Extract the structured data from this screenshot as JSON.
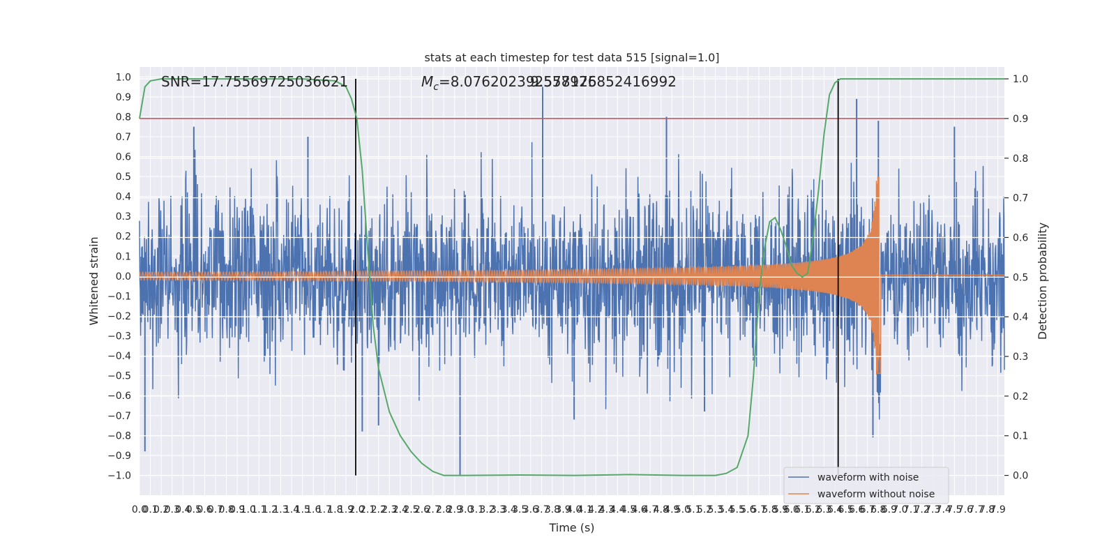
{
  "chart_data": {
    "type": "line",
    "title": "stats at each timestep for test data 515 [signal=1.0]",
    "xlabel": "Time (s)",
    "ylabel": "Whitened strain",
    "y2label": "Detection probability",
    "xlim": [
      0.0,
      7.96
    ],
    "ylim": [
      -1.1,
      1.05
    ],
    "y2lim": [
      -0.05,
      1.03
    ],
    "x_ticks": [
      "0.0",
      "0.1",
      "0.2",
      "0.3",
      "0.4",
      "0.5",
      "0.6",
      "0.7",
      "0.8",
      "0.9",
      "1.0",
      "1.1",
      "1.2",
      "1.3",
      "1.4",
      "1.5",
      "1.6",
      "1.7",
      "1.8",
      "1.9",
      "2.0",
      "2.1",
      "2.2",
      "2.3",
      "2.4",
      "2.5",
      "2.6",
      "2.7",
      "2.8",
      "2.9",
      "3.0",
      "3.1",
      "3.2",
      "3.3",
      "3.4",
      "3.5",
      "3.6",
      "3.7",
      "3.8",
      "3.9",
      "4.0",
      "4.1",
      "4.2",
      "4.3",
      "4.4",
      "4.5",
      "4.6",
      "4.7",
      "4.8",
      "4.9",
      "5.0",
      "5.1",
      "5.2",
      "5.3",
      "5.4",
      "5.5",
      "5.6",
      "5.7",
      "5.8",
      "5.9",
      "6.0",
      "6.1",
      "6.2",
      "6.3",
      "6.4",
      "6.5",
      "6.6",
      "6.7",
      "6.8",
      "6.9",
      "7.0",
      "7.1",
      "7.2",
      "7.3",
      "7.4",
      "7.5",
      "7.6",
      "7.7",
      "7.8",
      "7.9"
    ],
    "y_ticks": [
      "−1.0",
      "−0.9",
      "−0.8",
      "−0.7",
      "−0.6",
      "−0.5",
      "−0.4",
      "−0.3",
      "−0.2",
      "−0.1",
      "0.0",
      "0.1",
      "0.2",
      "0.3",
      "0.4",
      "0.5",
      "0.6",
      "0.7",
      "0.8",
      "0.9",
      "1.0"
    ],
    "y2_ticks": [
      "0.0",
      "0.1",
      "0.2",
      "0.3",
      "0.4",
      "0.5",
      "0.6",
      "0.7",
      "0.8",
      "0.9",
      "1.0"
    ],
    "annotations": {
      "snr": "SNR=17.75569725036621",
      "mc_prefix": "M",
      "mc_sub": "c",
      "mc_value": "=8.076202392578125",
      "overlap": "9.557976852416992"
    },
    "threshold": {
      "y2": 0.9,
      "color": "#c44e52"
    },
    "vlines": [
      1.99,
      6.43
    ],
    "series": [
      {
        "name": "waveform with noise",
        "color": "#4c72b0",
        "noise_std": 0.2,
        "spikes": [
          [
            0.05,
            -0.88
          ],
          [
            0.5,
            0.75
          ],
          [
            1.55,
            0.7
          ],
          [
            2.05,
            -0.78
          ],
          [
            2.2,
            -0.75
          ],
          [
            2.95,
            -1.0
          ],
          [
            3.71,
            0.95
          ],
          [
            4.0,
            -0.72
          ],
          [
            4.85,
            0.8
          ],
          [
            5.2,
            -0.68
          ],
          [
            6.6,
            0.89
          ],
          [
            6.75,
            -0.81
          ],
          [
            6.8,
            0.78
          ],
          [
            7.5,
            0.75
          ]
        ]
      },
      {
        "name": "waveform without noise",
        "color": "#dd8452",
        "chirp": {
          "t_merge": 6.8,
          "amp_start": 0.02,
          "amp_peak": 0.5,
          "amp_min": -0.42,
          "cycles_start": 0.055
        }
      },
      {
        "name": "",
        "color": "#55a868",
        "axis": "y2",
        "t": [
          0.0,
          0.05,
          0.1,
          0.2,
          0.5,
          1.0,
          1.5,
          1.8,
          1.9,
          1.95,
          2.0,
          2.05,
          2.1,
          2.15,
          2.2,
          2.3,
          2.4,
          2.5,
          2.6,
          2.7,
          2.8,
          3.0,
          3.5,
          4.0,
          4.5,
          5.0,
          5.3,
          5.4,
          5.5,
          5.6,
          5.65,
          5.7,
          5.75,
          5.8,
          5.85,
          5.9,
          5.95,
          6.0,
          6.05,
          6.1,
          6.15,
          6.2,
          6.25,
          6.3,
          6.35,
          6.4,
          6.45,
          6.5,
          6.55,
          6.6,
          7.0,
          7.5,
          7.96
        ],
        "p": [
          0.9,
          0.98,
          0.995,
          1.0,
          1.0,
          1.0,
          1.0,
          0.995,
          0.98,
          0.95,
          0.9,
          0.77,
          0.57,
          0.38,
          0.27,
          0.16,
          0.1,
          0.06,
          0.03,
          0.01,
          0.0,
          0.0,
          0.001,
          0.0,
          0.002,
          0.0,
          0.0,
          0.005,
          0.02,
          0.1,
          0.25,
          0.45,
          0.57,
          0.64,
          0.65,
          0.62,
          0.58,
          0.53,
          0.51,
          0.5,
          0.51,
          0.6,
          0.72,
          0.86,
          0.96,
          0.99,
          1.0,
          1.0,
          1.0,
          1.0,
          1.0,
          1.0,
          1.0
        ]
      }
    ],
    "legend_position": "lower-right",
    "grid": true
  }
}
